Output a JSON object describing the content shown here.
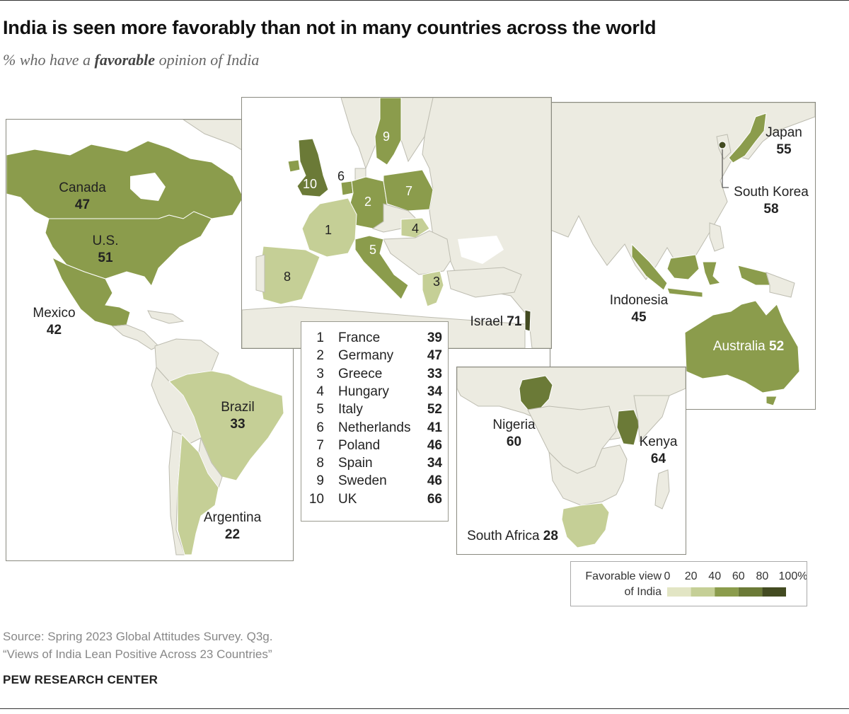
{
  "title": "India is seen more favorably than not in many countries across the world",
  "subtitle": {
    "prefix": "% who have a ",
    "emphasis": "favorable",
    "suffix": " opinion of India"
  },
  "colors": {
    "land": "#ecebe1",
    "border": "#bdbcb0",
    "bin_0_20": "#e2e5c4",
    "bin_20_40": "#c5cf96",
    "bin_40_60": "#8b9c4c",
    "bin_60_80": "#6b7a37",
    "bin_80_100": "#434b21"
  },
  "countries": {
    "canada": {
      "name": "Canada",
      "value": "47"
    },
    "us": {
      "name": "U.S.",
      "value": "51"
    },
    "mexico": {
      "name": "Mexico",
      "value": "42"
    },
    "brazil": {
      "name": "Brazil",
      "value": "33"
    },
    "argentina": {
      "name": "Argentina",
      "value": "22"
    },
    "israel": {
      "name": "Israel",
      "value": "71"
    },
    "japan": {
      "name": "Japan",
      "value": "55"
    },
    "south_korea": {
      "name": "South Korea",
      "value": "58"
    },
    "indonesia": {
      "name": "Indonesia",
      "value": "45"
    },
    "australia": {
      "name": "Australia",
      "value": "52"
    },
    "nigeria": {
      "name": "Nigeria",
      "value": "60"
    },
    "kenya": {
      "name": "Kenya",
      "value": "64"
    },
    "south_africa": {
      "name": "South Africa",
      "value": "28"
    }
  },
  "europe_list": [
    {
      "num": "1",
      "name": "France",
      "value": "39"
    },
    {
      "num": "2",
      "name": "Germany",
      "value": "47"
    },
    {
      "num": "3",
      "name": "Greece",
      "value": "33"
    },
    {
      "num": "4",
      "name": "Hungary",
      "value": "34"
    },
    {
      "num": "5",
      "name": "Italy",
      "value": "52"
    },
    {
      "num": "6",
      "name": "Netherlands",
      "value": "41"
    },
    {
      "num": "7",
      "name": "Poland",
      "value": "46"
    },
    {
      "num": "8",
      "name": "Spain",
      "value": "34"
    },
    {
      "num": "9",
      "name": "Sweden",
      "value": "46"
    },
    {
      "num": "10",
      "name": "UK",
      "value": "66"
    }
  ],
  "legend": {
    "title_line1": "Favorable view",
    "title_line2": "of India",
    "ticks": [
      "0",
      "20",
      "40",
      "60",
      "80",
      "100%"
    ]
  },
  "source": {
    "line1": "Source: Spring 2023 Global Attitudes Survey. Q3g.",
    "line2": "“Views of India Lean Positive Across 23 Countries”"
  },
  "brand": "PEW RESEARCH CENTER"
}
